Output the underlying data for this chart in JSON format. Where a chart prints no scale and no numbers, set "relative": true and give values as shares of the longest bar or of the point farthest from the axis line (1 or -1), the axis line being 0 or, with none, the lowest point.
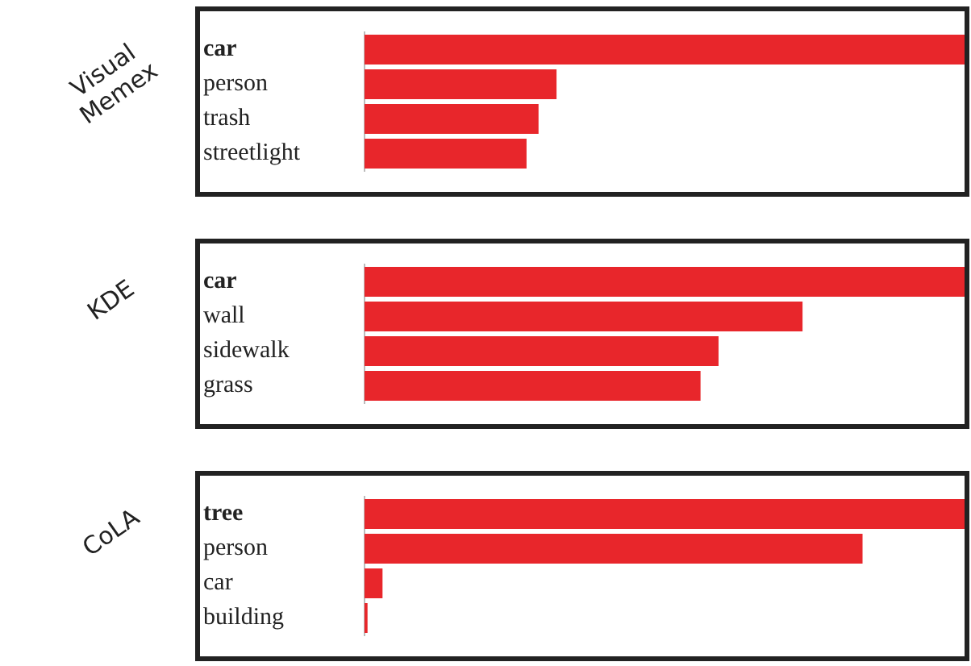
{
  "chart_data": [
    {
      "type": "bar",
      "orientation": "horizontal",
      "relative": true,
      "ylabel": "Visual Memex",
      "categories": [
        "car",
        "person",
        "trash",
        "streetlight"
      ],
      "values": [
        1,
        0.32,
        0.29,
        0.27
      ],
      "color": "#e8262b",
      "legend": false,
      "tick_labels": "y"
    },
    {
      "type": "bar",
      "orientation": "horizontal",
      "relative": true,
      "ylabel": "KDE",
      "categories": [
        "car",
        "wall",
        "sidewalk",
        "grass"
      ],
      "values": [
        1,
        0.73,
        0.59,
        0.56
      ],
      "color": "#e8262b",
      "legend": false,
      "tick_labels": "y"
    },
    {
      "type": "bar",
      "orientation": "horizontal",
      "relative": true,
      "ylabel": "CoLA",
      "categories": [
        "tree",
        "person",
        "car",
        "building"
      ],
      "values": [
        1,
        0.83,
        0.03,
        0.005
      ],
      "color": "#e8262b",
      "legend": false,
      "tick_labels": "y"
    }
  ]
}
